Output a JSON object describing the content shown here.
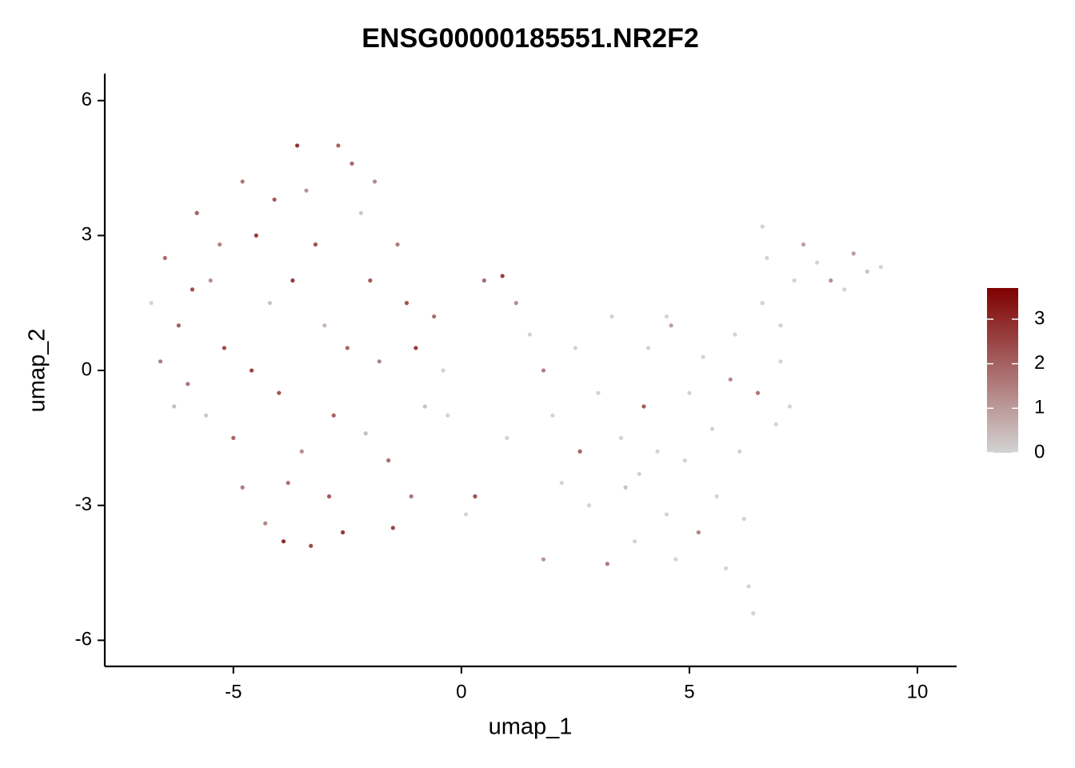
{
  "chart_data": {
    "type": "scatter",
    "title": "ENSG00000185551.NR2F2",
    "x_label": "umap_1",
    "y_label": "umap_2",
    "xlim": [
      -7.82,
      10.86
    ],
    "ylim": [
      -6.58,
      6.6
    ],
    "xticks": [
      -5,
      0,
      5,
      10
    ],
    "yticks": [
      -6,
      -3,
      0,
      3,
      6
    ],
    "grid": false,
    "color_scale": [
      "#d3d3d3",
      "#7f0000"
    ],
    "color_lim": [
      0,
      3.7
    ],
    "color_ticks": [
      0,
      1,
      2,
      3
    ],
    "x": [
      -6.5,
      -6.2,
      -6.6,
      -6.3,
      -5.8,
      -5.5,
      -5.2,
      -5.0,
      -4.8,
      -4.5,
      -4.2,
      -4.0,
      -3.8,
      -3.6,
      -3.4,
      -3.2,
      -3.0,
      -2.8,
      -2.6,
      -2.4,
      -2.2,
      -2.0,
      -1.8,
      -1.6,
      -1.5,
      -1.2,
      -1.0,
      -0.8,
      -1.1,
      -3.9,
      -3.3,
      -4.3,
      -4.8,
      -5.6,
      -5.9,
      -6.0,
      -4.6,
      -3.5,
      -2.5,
      -2.9,
      -2.1,
      -1.4,
      -3.7,
      -4.1,
      -5.3,
      -2.7,
      -1.9,
      -6.8,
      -0.6,
      -0.4,
      -0.3,
      0.3,
      0.1,
      0.5,
      0.9,
      1.2,
      1.5,
      1.0,
      1.8,
      2.0,
      2.2,
      1.8,
      2.5,
      2.6,
      2.8,
      3.0,
      3.2,
      3.3,
      3.5,
      3.6,
      3.8,
      4.0,
      4.1,
      4.3,
      4.5,
      4.6,
      4.7,
      4.9,
      5.0,
      5.2,
      5.3,
      5.5,
      5.6,
      5.8,
      5.9,
      6.0,
      6.1,
      6.2,
      6.3,
      6.4,
      6.5,
      6.6,
      6.7,
      6.6,
      6.9,
      7.0,
      7.2,
      7.3,
      7.5,
      7.8,
      8.1,
      8.4,
      8.6,
      8.9,
      9.2,
      7.0,
      4.5,
      3.9
    ],
    "y": [
      2.5,
      1.0,
      0.2,
      -0.8,
      3.5,
      2.0,
      0.5,
      -1.5,
      4.2,
      3.0,
      1.5,
      -0.5,
      -2.5,
      5.0,
      4.0,
      2.8,
      1.0,
      -1.0,
      -3.6,
      4.6,
      3.5,
      2.0,
      0.2,
      -2.0,
      -3.5,
      1.5,
      0.5,
      -0.8,
      -2.8,
      -3.8,
      -3.9,
      -3.4,
      -2.6,
      -1.0,
      1.8,
      -0.3,
      0.0,
      -1.8,
      0.5,
      -2.8,
      -1.4,
      2.8,
      2.0,
      3.8,
      2.8,
      5.0,
      4.2,
      1.5,
      1.2,
      0.0,
      -1.0,
      -2.8,
      -3.2,
      2.0,
      2.1,
      1.5,
      0.8,
      -1.5,
      0.0,
      -1.0,
      -2.5,
      -4.2,
      0.5,
      -1.8,
      -3.0,
      -0.5,
      -4.3,
      1.2,
      -1.5,
      -2.6,
      -3.8,
      -0.8,
      0.5,
      -1.8,
      -3.2,
      1.0,
      -4.2,
      -2.0,
      -0.5,
      -3.6,
      0.3,
      -1.3,
      -2.8,
      -4.4,
      -0.2,
      0.8,
      -1.8,
      -3.3,
      -4.8,
      -5.4,
      -0.5,
      1.5,
      2.5,
      3.2,
      -1.2,
      0.2,
      -0.8,
      2.0,
      2.8,
      2.4,
      2.0,
      1.8,
      2.6,
      2.2,
      2.3,
      1.0,
      1.2,
      -2.3
    ],
    "values": [
      1.8,
      2.1,
      1.5,
      0.4,
      2.0,
      1.2,
      2.4,
      1.9,
      1.6,
      2.6,
      0.3,
      2.2,
      1.7,
      2.8,
      1.1,
      2.3,
      0.5,
      2.0,
      2.7,
      1.9,
      0.2,
      2.1,
      1.4,
      1.8,
      2.5,
      2.2,
      2.6,
      0.3,
      1.6,
      2.9,
      2.4,
      1.3,
      1.5,
      0.2,
      2.3,
      1.7,
      2.5,
      1.2,
      1.9,
      2.1,
      0.4,
      1.5,
      2.7,
      2.2,
      1.4,
      2.0,
      1.3,
      0.0,
      1.8,
      0.0,
      0.0,
      2.3,
      0.0,
      1.8,
      2.6,
      1.2,
      0.0,
      0.0,
      1.5,
      0.0,
      0.0,
      1.1,
      0.0,
      2.0,
      0.0,
      0.0,
      1.6,
      0.0,
      0.0,
      0.3,
      0.0,
      2.1,
      0.0,
      0.0,
      0.0,
      0.9,
      0.0,
      0.0,
      0.0,
      1.4,
      0.0,
      0.0,
      0.0,
      0.0,
      1.3,
      0.0,
      0.0,
      0.0,
      0.0,
      0.0,
      1.7,
      0.0,
      0.0,
      0.0,
      0.0,
      0.0,
      0.0,
      0.0,
      0.9,
      0.0,
      1.2,
      0.0,
      1.0,
      0.3,
      0.0,
      0.0,
      0.0,
      0.0
    ]
  }
}
